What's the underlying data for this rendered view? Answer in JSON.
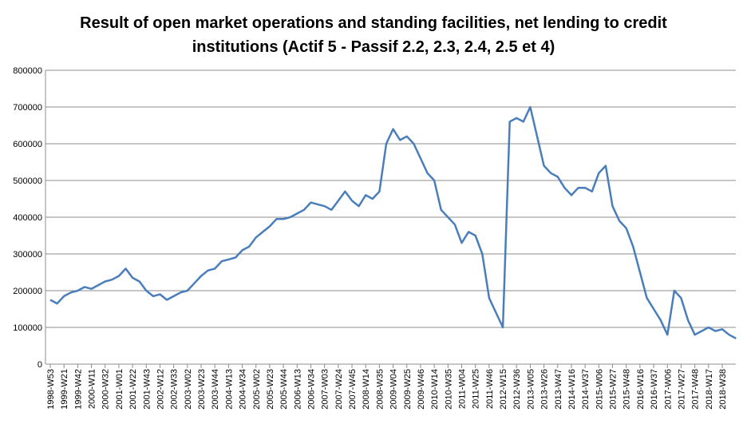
{
  "chart_data": {
    "type": "line",
    "title": "Result of  open market operations and standing facilities, net lending to credit institutions (Actif 5 - Passif 2.2, 2.3, 2.4, 2.5 et 4)",
    "categories": [
      "1998-W53",
      null,
      "1999-W21",
      null,
      "1999-W42",
      null,
      "2000-W11",
      null,
      "2000-W32",
      null,
      "2001-W01",
      null,
      "2001-W22",
      null,
      "2001-W43",
      null,
      "2002-W12",
      null,
      "2002-W33",
      null,
      "2003-W02",
      null,
      "2003-W23",
      null,
      "2003-W44",
      null,
      "2004-W13",
      null,
      "2004-W34",
      null,
      "2005-W02",
      null,
      "2005-W23",
      null,
      "2005-W44",
      null,
      "2006-W13",
      null,
      "2006-W34",
      null,
      "2007-W03",
      null,
      "2007-W24",
      null,
      "2007-W45",
      null,
      "2008-W14",
      null,
      "2008-W35",
      null,
      "2009-W04",
      null,
      "2009-W25",
      null,
      "2009-W46",
      null,
      "2010-W14",
      null,
      "2010-W35",
      null,
      "2011-W04",
      null,
      "2011-W25",
      null,
      "2011-W46",
      null,
      "2012-W15",
      null,
      "2012-W36",
      null,
      "2013-W05",
      null,
      "2013-W26",
      null,
      "2013-W47",
      null,
      "2014-W16",
      null,
      "2014-W37",
      null,
      "2015-W06",
      null,
      "2015-W27",
      null,
      "2015-W48",
      null,
      "2016-W16",
      null,
      "2016-W37",
      null,
      "2017-W06",
      null,
      "2017-W27",
      null,
      "2017-W48",
      null,
      "2018-W17",
      null,
      "2018-W38",
      null,
      null
    ],
    "series": [
      {
        "name": "net lending",
        "color": "#4a7ebb",
        "values": [
          175000,
          165000,
          185000,
          195000,
          200000,
          210000,
          205000,
          215000,
          225000,
          230000,
          240000,
          260000,
          235000,
          225000,
          200000,
          185000,
          190000,
          175000,
          185000,
          195000,
          200000,
          220000,
          240000,
          255000,
          260000,
          280000,
          285000,
          290000,
          310000,
          320000,
          345000,
          360000,
          375000,
          395000,
          395000,
          400000,
          410000,
          420000,
          440000,
          435000,
          430000,
          420000,
          445000,
          470000,
          445000,
          430000,
          460000,
          450000,
          470000,
          600000,
          640000,
          610000,
          620000,
          600000,
          560000,
          520000,
          500000,
          420000,
          400000,
          380000,
          330000,
          360000,
          350000,
          300000,
          180000,
          140000,
          100000,
          660000,
          670000,
          660000,
          700000,
          620000,
          540000,
          520000,
          510000,
          480000,
          460000,
          480000,
          480000,
          470000,
          520000,
          540000,
          430000,
          390000,
          370000,
          320000,
          250000,
          180000,
          150000,
          120000,
          80000,
          200000,
          180000,
          120000,
          80000,
          90000,
          100000,
          90000,
          95000,
          80000,
          70000
        ]
      }
    ],
    "ylim": [
      0,
      800000
    ],
    "yticks": [
      0,
      100000,
      200000,
      300000,
      400000,
      500000,
      600000,
      700000,
      800000
    ],
    "grid": true
  }
}
